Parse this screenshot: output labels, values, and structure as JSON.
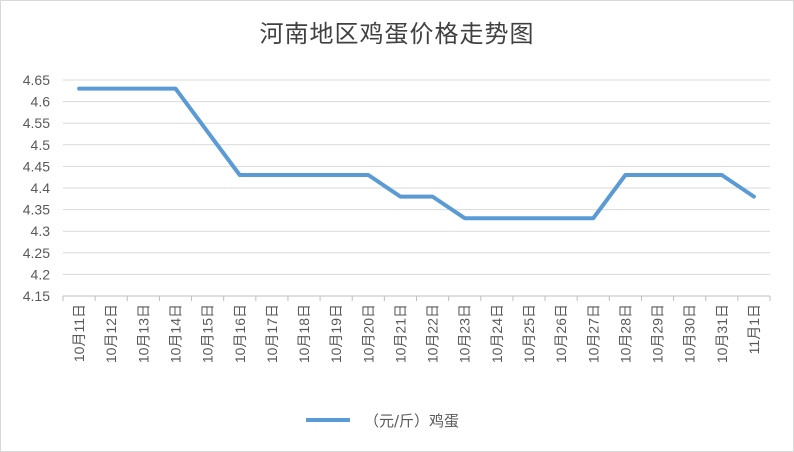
{
  "chart_data": {
    "type": "line",
    "title": "河南地区鸡蛋价格走势图",
    "xlabel": "",
    "ylabel": "",
    "ylim": [
      4.15,
      4.65
    ],
    "ytick_labels": [
      "4.15",
      "4.2",
      "4.25",
      "4.3",
      "4.35",
      "4.4",
      "4.45",
      "4.5",
      "4.55",
      "4.6",
      "4.65"
    ],
    "categories": [
      "10月11日",
      "10月12日",
      "10月13日",
      "10月14日",
      "10月15日",
      "10月16日",
      "10月17日",
      "10月18日",
      "10月19日",
      "10月20日",
      "10月21日",
      "10月22日",
      "10月23日",
      "10月24日",
      "10月25日",
      "10月26日",
      "10月27日",
      "10月28日",
      "10月29日",
      "10月30日",
      "10月31日",
      "11月1日"
    ],
    "series": [
      {
        "name": "（元/斤）鸡蛋",
        "color": "#5B9BD5",
        "values": [
          4.63,
          4.63,
          4.63,
          4.63,
          4.53,
          4.43,
          4.43,
          4.43,
          4.43,
          4.43,
          4.38,
          4.38,
          4.33,
          4.33,
          4.33,
          4.33,
          4.33,
          4.43,
          4.43,
          4.43,
          4.43,
          4.38
        ]
      }
    ],
    "grid": true,
    "legend_position": "bottom"
  }
}
